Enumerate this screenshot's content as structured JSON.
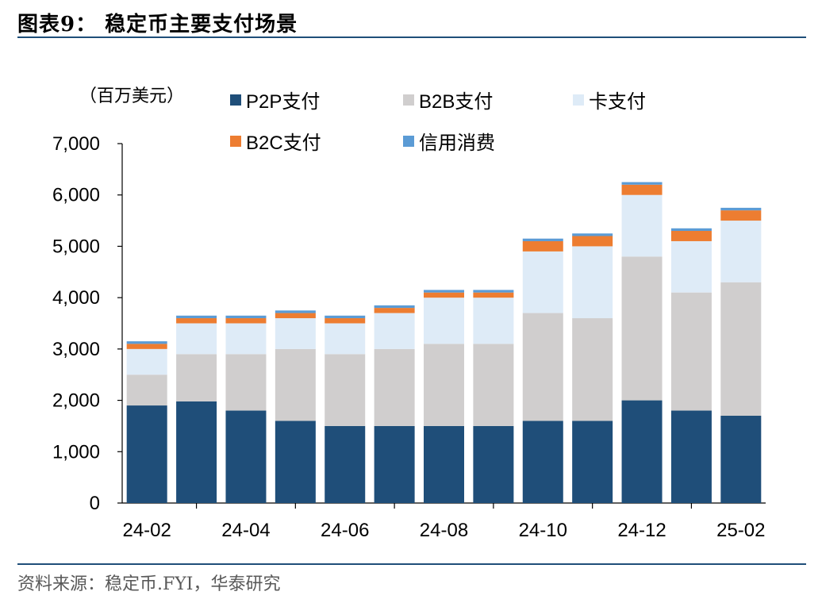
{
  "header": {
    "title": "图表9：  稳定币主要支付场景"
  },
  "footer": {
    "source": "资料来源：稳定币.FYI，华泰研究"
  },
  "chart_data": {
    "type": "bar",
    "stacked": true,
    "unit_label": "（百万美元）",
    "categories": [
      "2024-02",
      "2024-03",
      "2024-04",
      "2024-05",
      "2024-06",
      "2024-07",
      "2024-08",
      "2024-09",
      "2024-10",
      "2024-11",
      "2024-12",
      "2025-01",
      "2025-02"
    ],
    "x_tick_labels": [
      "24-02",
      "24-04",
      "24-06",
      "24-08",
      "24-10",
      "24-12",
      "25-02"
    ],
    "y_ticks": [
      "0",
      "1,000",
      "2,000",
      "3,000",
      "4,000",
      "5,000",
      "6,000",
      "7,000"
    ],
    "ylim": [
      0,
      7000
    ],
    "grid": false,
    "legend": "top",
    "series": [
      {
        "name": "P2P支付",
        "color": "#1f4e79",
        "values": [
          1900,
          1980,
          1800,
          1600,
          1500,
          1500,
          1500,
          1500,
          1600,
          1600,
          2000,
          1800,
          1700
        ]
      },
      {
        "name": "B2B支付",
        "color": "#d0cece",
        "values": [
          600,
          920,
          1100,
          1400,
          1400,
          1500,
          1600,
          1600,
          2100,
          2000,
          2800,
          2300,
          2600
        ]
      },
      {
        "name": "卡支付",
        "color": "#deebf7",
        "values": [
          500,
          600,
          600,
          600,
          600,
          700,
          900,
          900,
          1200,
          1400,
          1200,
          1000,
          1200
        ]
      },
      {
        "name": "B2C支付",
        "color": "#ed7d31",
        "values": [
          100,
          100,
          100,
          100,
          100,
          100,
          100,
          100,
          200,
          200,
          200,
          200,
          200
        ]
      },
      {
        "name": "信用消费",
        "color": "#5b9bd5",
        "values": [
          50,
          50,
          50,
          50,
          50,
          50,
          50,
          50,
          50,
          50,
          50,
          50,
          50
        ]
      }
    ]
  }
}
